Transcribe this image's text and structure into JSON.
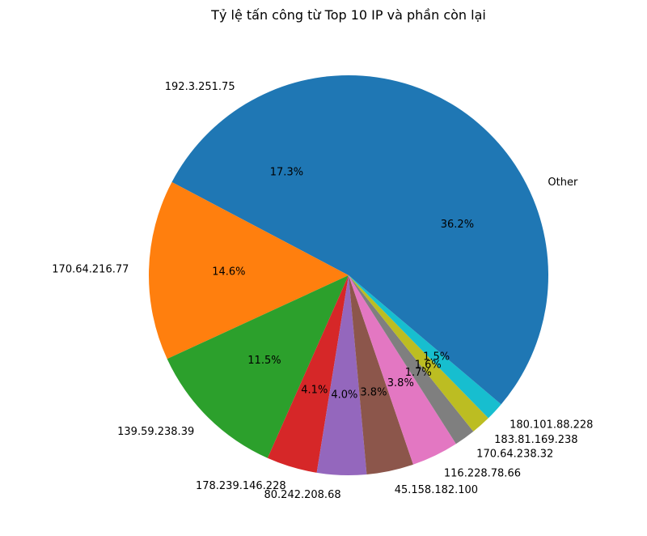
{
  "chart_data": {
    "type": "pie",
    "title": "Tỷ lệ tấn công từ Top 10 IP và phần còn lại",
    "start_angle_deg": 90,
    "direction": "counterclockwise",
    "slices": [
      {
        "label": "192.3.251.75",
        "value": 17.3,
        "pct_label": "17.3%",
        "color": "#1f77b4"
      },
      {
        "label": "170.64.216.77",
        "value": 14.6,
        "pct_label": "14.6%",
        "color": "#ff7f0e"
      },
      {
        "label": "139.59.238.39",
        "value": 11.5,
        "pct_label": "11.5%",
        "color": "#2ca02c"
      },
      {
        "label": "178.239.146.228",
        "value": 4.1,
        "pct_label": "4.1%",
        "color": "#d62728"
      },
      {
        "label": "80.242.208.68",
        "value": 4.0,
        "pct_label": "4.0%",
        "color": "#9467bd"
      },
      {
        "label": "45.158.182.100",
        "value": 3.8,
        "pct_label": "3.8%",
        "color": "#8c564b"
      },
      {
        "label": "116.228.78.66",
        "value": 3.8,
        "pct_label": "3.8%",
        "color": "#e377c2"
      },
      {
        "label": "170.64.238.32",
        "value": 1.7,
        "pct_label": "1.7%",
        "color": "#7f7f7f"
      },
      {
        "label": "183.81.169.238",
        "value": 1.6,
        "pct_label": "1.6%",
        "color": "#bcbd22"
      },
      {
        "label": "180.101.88.228",
        "value": 1.5,
        "pct_label": "1.5%",
        "color": "#17becf"
      },
      {
        "label": "Other",
        "value": 36.2,
        "pct_label": "36.2%",
        "color": "#1f77b4"
      }
    ]
  }
}
